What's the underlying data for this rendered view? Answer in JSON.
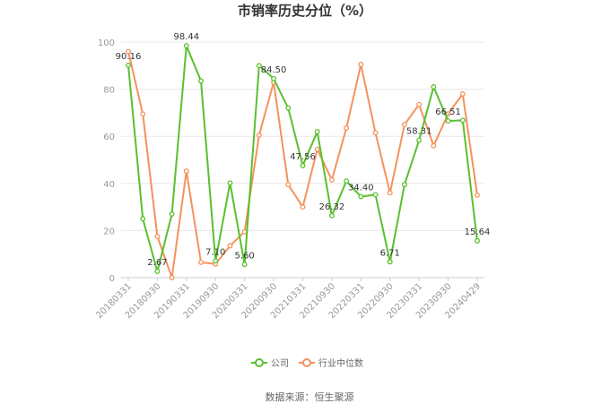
{
  "chart_data": {
    "type": "line",
    "title": "市销率历史分位（%）",
    "xlabel": "",
    "ylabel": "",
    "ylim": [
      0,
      100
    ],
    "yticks": [
      0,
      20,
      40,
      60,
      80,
      100
    ],
    "grid": true,
    "legend_position": "bottom",
    "x_tick_labels": [
      "20180331",
      "20180930",
      "20190331",
      "20190930",
      "20200331",
      "20200930",
      "20210331",
      "20210930",
      "20220331",
      "20220930",
      "20230331",
      "20230930",
      "20240429"
    ],
    "x": [
      "20180331",
      "20180630",
      "20180930",
      "20181231",
      "20190331",
      "20190630",
      "20190930",
      "20191231",
      "20200331",
      "20200630",
      "20200930",
      "20201231",
      "20210331",
      "20210630",
      "20210930",
      "20211231",
      "20220331",
      "20220630",
      "20220930",
      "20221231",
      "20230331",
      "20230630",
      "20230930",
      "20231231",
      "20240429"
    ],
    "series": [
      {
        "name": "公司",
        "color": "#5ac02e",
        "values": [
          90.16,
          25.0,
          2.67,
          27.0,
          98.44,
          83.5,
          7.1,
          40.2,
          5.6,
          90.0,
          84.5,
          72.0,
          47.56,
          62.0,
          26.32,
          41.0,
          34.4,
          35.2,
          6.71,
          39.5,
          58.31,
          81.0,
          66.51,
          66.8,
          15.64
        ],
        "labels": {
          "0": "90.16",
          "2": "2.67",
          "4": "98.44",
          "6": "7.10",
          "8": "5.60",
          "10": "84.50",
          "12": "47.56",
          "14": "26.32",
          "16": "34.40",
          "18": "6.71",
          "20": "58.31",
          "22": "66.51",
          "24": "15.64"
        }
      },
      {
        "name": "行业中位数",
        "color": "#f4925e",
        "values": [
          96.0,
          69.5,
          17.5,
          0.0,
          45.2,
          6.5,
          5.8,
          13.5,
          19.5,
          60.5,
          83.0,
          39.5,
          30.0,
          54.5,
          41.5,
          63.5,
          90.5,
          61.5,
          36.0,
          65.0,
          73.5,
          56.0,
          69.5,
          78.0,
          35.0
        ]
      }
    ]
  },
  "footer": {
    "source_text": "数据来源：恒生聚源"
  }
}
